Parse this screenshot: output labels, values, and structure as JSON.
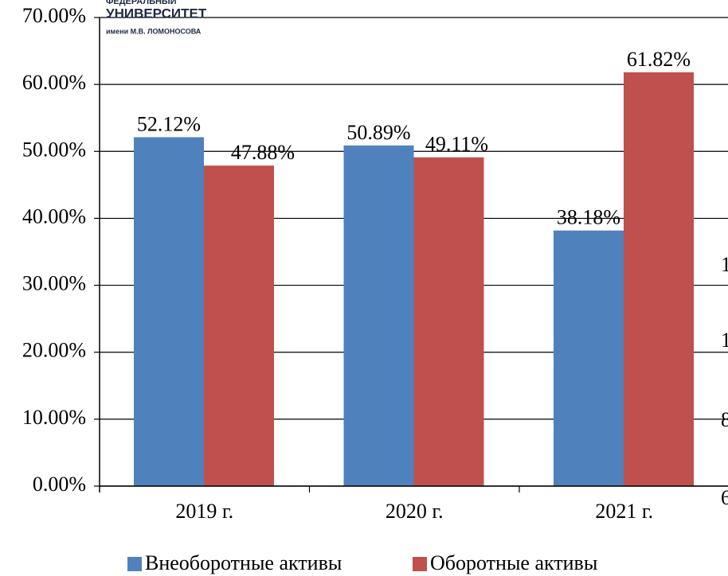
{
  "chart_data": {
    "type": "bar",
    "categories": [
      "2019 г.",
      "2020 г.",
      "2021 г."
    ],
    "series": [
      {
        "name": "Внеоборотные активы",
        "color": "#4f81bd",
        "values": [
          52.12,
          50.89,
          38.18
        ],
        "value_labels": [
          "52.12%",
          "50.89%",
          "38.18%"
        ]
      },
      {
        "name": "Оборотные активы",
        "color": "#c0504d",
        "values": [
          47.88,
          49.11,
          61.82
        ],
        "value_labels": [
          "47.88%",
          "49.11%",
          "61.82%"
        ]
      }
    ],
    "ylim": [
      0,
      70
    ],
    "yticks": [
      {
        "value": 0,
        "label": "0.00%"
      },
      {
        "value": 10,
        "label": "10.00%"
      },
      {
        "value": 20,
        "label": "20.00%"
      },
      {
        "value": 30,
        "label": "30.00%"
      },
      {
        "value": 40,
        "label": "40.00%"
      },
      {
        "value": 50,
        "label": "50.00%"
      },
      {
        "value": 60,
        "label": "60.00%"
      },
      {
        "value": 70,
        "label": "70.00%"
      }
    ],
    "grid": true,
    "legend": "bottom",
    "logo": [
      "ФЕДЕРАЛЬНЫЙ",
      "УНИВЕРСИТЕТ",
      "имени М.В. ЛОМОНОСОВА"
    ],
    "edge_fragments": [
      "1",
      "1",
      "8",
      "6"
    ]
  }
}
